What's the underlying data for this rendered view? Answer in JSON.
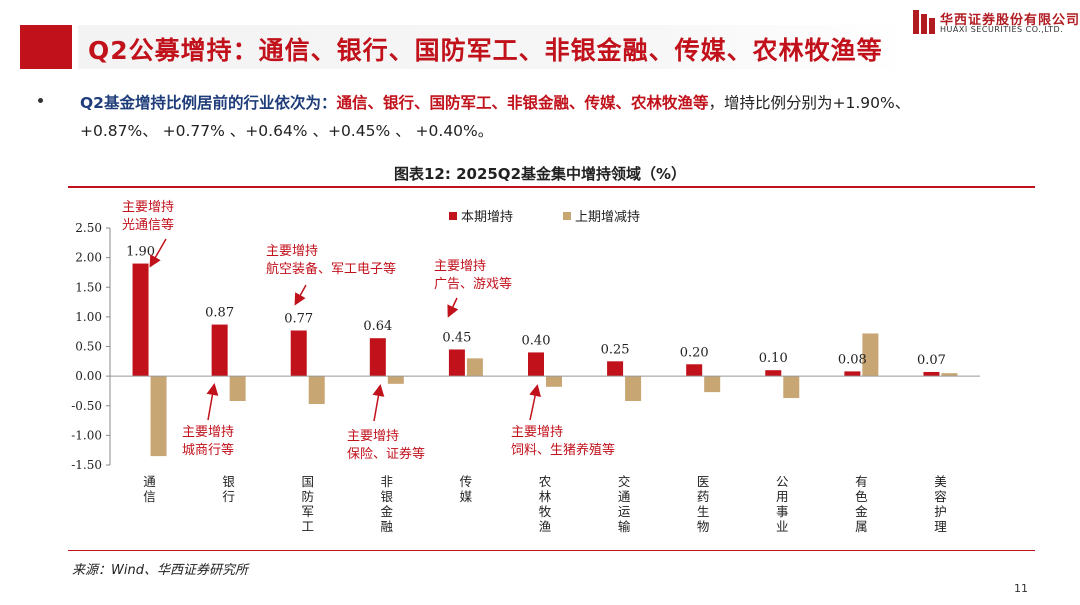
{
  "header": {
    "title": "Q2公募增持：通信、银行、国防军工、非银金融、传媒、农林牧渔等",
    "logo_cn": "华西证券股份有限公司",
    "logo_en": "HUAXI SECURITIES CO.,LTD."
  },
  "bullet": {
    "lead": "Q2基金增持比例居前的行业依次为：",
    "industries": "通信、银行、国防军工、非银金融、传媒、农林牧渔等",
    "tail": "，增持比例分别为+1.90%、",
    "line2": "+0.87%、 +0.77% 、+0.64% 、+0.45% 、 +0.40%。"
  },
  "chart_data": {
    "type": "bar",
    "title": "图表12:  2025Q2基金集中增持领域（%）",
    "categories": [
      "通信",
      "银行",
      "国防军工",
      "非银金融",
      "传媒",
      "农林牧渔",
      "交通运输",
      "医药生物",
      "公用事业",
      "有色金属",
      "美容护理"
    ],
    "series": [
      {
        "name": "本期增持",
        "color": "#c1121c",
        "values": [
          1.9,
          0.87,
          0.77,
          0.64,
          0.45,
          0.4,
          0.25,
          0.2,
          0.1,
          0.08,
          0.07
        ]
      },
      {
        "name": "上期增减持",
        "color": "#c8a673",
        "values": [
          -1.35,
          -0.42,
          -0.47,
          -0.13,
          0.3,
          -0.18,
          -0.42,
          -0.27,
          -0.37,
          0.72,
          0.05
        ]
      }
    ],
    "data_labels": [
      "1.90",
      "0.87",
      "0.77",
      "0.64",
      "0.45",
      "0.40",
      "0.25",
      "0.20",
      "0.10",
      "0.08",
      "0.07"
    ],
    "yticks": [
      "2.50",
      "2.00",
      "1.50",
      "1.00",
      "0.50",
      "0.00",
      "-0.50",
      "-1.00",
      "-1.50"
    ],
    "ylim": [
      -1.5,
      2.5
    ],
    "legend_position": "top-center",
    "annotations": [
      {
        "lines": [
          "主要增持",
          "光通信等"
        ],
        "category": "通信"
      },
      {
        "lines": [
          "主要增持",
          "城商行等"
        ],
        "category": "银行"
      },
      {
        "lines": [
          "主要增持",
          "航空装备、军工电子等"
        ],
        "category": "国防军工"
      },
      {
        "lines": [
          "主要增持",
          "保险、证券等"
        ],
        "category": "非银金融"
      },
      {
        "lines": [
          "主要增持",
          "广告、游戏等"
        ],
        "category": "传媒"
      },
      {
        "lines": [
          "主要增持",
          "饲料、生猪养殖等"
        ],
        "category": "农林牧渔"
      }
    ]
  },
  "footer": {
    "source": "来源：Wind、华西证券研究所",
    "page": "11"
  }
}
